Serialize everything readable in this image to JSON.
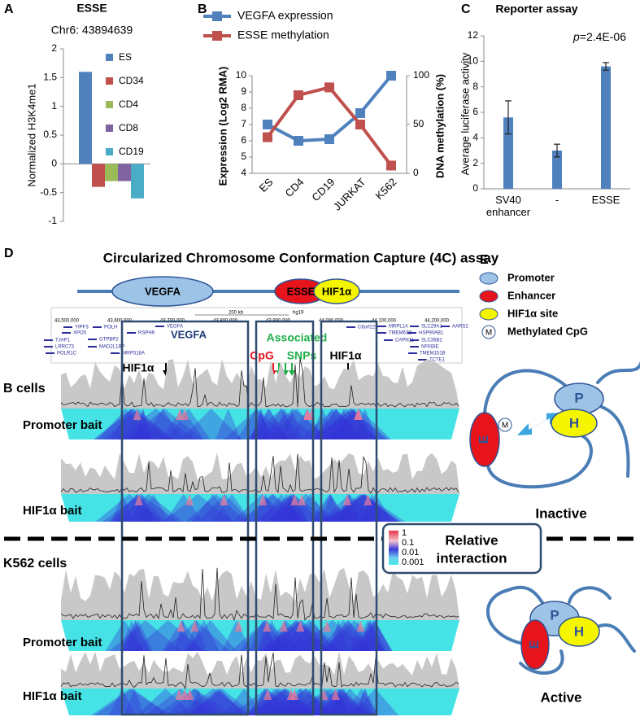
{
  "panel_labels": [
    "A",
    "B",
    "C",
    "D",
    "E"
  ],
  "chart_data": [
    {
      "type": "bar",
      "title": "ESSE",
      "subtitle": "Chr6: 43894639",
      "y_label": "Normalized H3K4me1",
      "ylim": [
        -1,
        2
      ],
      "yticks": [
        -1,
        -0.5,
        0,
        0.5,
        1,
        1.5,
        2
      ],
      "series": [
        {
          "name": "ES",
          "color": "#4f81bd",
          "values": [
            1.6
          ]
        },
        {
          "name": "CD34",
          "color": "#c0504d",
          "values": [
            -0.4
          ]
        },
        {
          "name": "CD4",
          "color": "#9bbb59",
          "values": [
            -0.3
          ]
        },
        {
          "name": "CD8",
          "color": "#8064a2",
          "values": [
            -0.3
          ]
        },
        {
          "name": "CD19",
          "color": "#4bacc6",
          "values": [
            -0.6
          ]
        }
      ]
    },
    {
      "type": "line",
      "y_label": "Expression (Log2 RMA)",
      "y2_label": "DNA methylation (%)",
      "categories": [
        "ES",
        "CD4",
        "CD19",
        "JURKAT",
        "K562"
      ],
      "ylim": [
        4,
        10
      ],
      "yticks": [
        4,
        5,
        6,
        7,
        8,
        9,
        10
      ],
      "y2lim": [
        0,
        100
      ],
      "y2ticks": [
        0,
        50,
        100
      ],
      "series": [
        {
          "name": "VEGFA expression",
          "color": "#4f81bd",
          "values": [
            7,
            6,
            6.1,
            7.7,
            10
          ]
        },
        {
          "name": "ESSE methylation",
          "color": "#c0504d",
          "axis": "y2",
          "values": [
            37,
            80,
            88,
            50,
            8
          ]
        }
      ]
    },
    {
      "type": "bar",
      "title": "Reporter assay",
      "annotation": [
        "p",
        "=2.4E-06"
      ],
      "y_label": "Average luciferase activity",
      "categories": [
        "SV40 enhancer",
        "-",
        "ESSE"
      ],
      "values": [
        5.6,
        3,
        9.6
      ],
      "errors": [
        1.3,
        0.5,
        0.3
      ],
      "color": "#4f81bd",
      "ylim": [
        0,
        12
      ],
      "yticks": [
        0,
        2,
        4,
        6,
        8,
        10,
        12
      ]
    }
  ],
  "panel_d": {
    "title": "Circularized Chromosome Conformation Capture (4C) assay",
    "elements": [
      "VEGFA",
      "ESSE",
      "HIF1α"
    ],
    "coordinates": [
      "43,500,000",
      "43,600,000",
      "43,700,000",
      "43,800,000",
      "43,900,000",
      "44,000,000",
      "44,100,000",
      "44,200,000"
    ],
    "scale": "200 kb",
    "assembly": "hg19",
    "genes": [
      "YIPF3",
      "XPO5",
      "TJAP1",
      "LRRC73",
      "POLR1C",
      "POLH",
      "GTPBP2",
      "MAD2L1BP",
      "RSPH9",
      "MRPS18A",
      "VEGFA",
      "C6orf223",
      "MRPL14",
      "TMEM63B",
      "CAPN11",
      "SLC29A1",
      "HSP90AB1",
      "SLC35B2",
      "NFKBIE",
      "TMEM151B",
      "TCTE1",
      "AARS2"
    ],
    "gene_highlight": "VEGFA",
    "annotations": {
      "hif1a_left": "HIF1α",
      "cpg": "CpG",
      "associated": "Associated",
      "snps": "SNPs",
      "hif1a_right": "HIF1α"
    },
    "groups": [
      "B cells",
      "K562 cells"
    ],
    "tracks": [
      "Promoter bait",
      "HIF1α bait",
      "Promoter bait",
      "HIF1α bait"
    ],
    "legend_ticks": [
      1,
      0.1,
      0.01,
      0.001
    ],
    "legend_title": [
      "Relative",
      "interaction"
    ]
  },
  "panel_e": {
    "legend": [
      "Promoter",
      "Enhancer",
      "HIF1α site",
      "Methylated CpG"
    ],
    "symbol_m": "M",
    "shape_labels": {
      "promoter": "P",
      "hif1a": "H",
      "enhancer": "E"
    },
    "states": [
      "Inactive",
      "Active"
    ]
  }
}
